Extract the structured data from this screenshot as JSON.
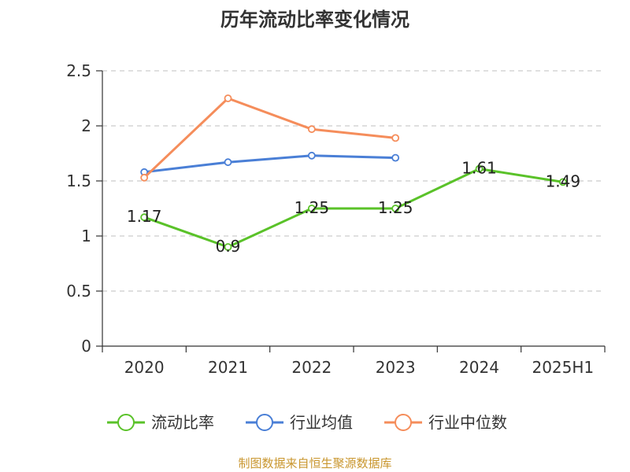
{
  "chart_data": {
    "type": "line",
    "title": "历年流动比率变化情况",
    "categories": [
      "2020",
      "2021",
      "2022",
      "2023",
      "2024",
      "2025H1"
    ],
    "ylim": [
      0,
      2.5
    ],
    "yticks": [
      "0",
      "0.5",
      "1",
      "1.5",
      "2",
      "2.5"
    ],
    "grid": true,
    "legend_position": "bottom",
    "series": [
      {
        "name": "流动比率",
        "color": "#5ac229",
        "values": [
          1.17,
          0.9,
          1.25,
          1.25,
          1.61,
          1.49
        ],
        "labels": [
          "1.17",
          "0.9",
          "1.25",
          "1.25",
          "1.61",
          "1.49"
        ]
      },
      {
        "name": "行业均值",
        "color": "#4a7fd6",
        "values": [
          1.58,
          1.67,
          1.73,
          1.71,
          null,
          null
        ]
      },
      {
        "name": "行业中位数",
        "color": "#f58d5b",
        "values": [
          1.53,
          2.25,
          1.97,
          1.89,
          null,
          null
        ]
      }
    ]
  },
  "source": "制图数据来自恒生聚源数据库"
}
